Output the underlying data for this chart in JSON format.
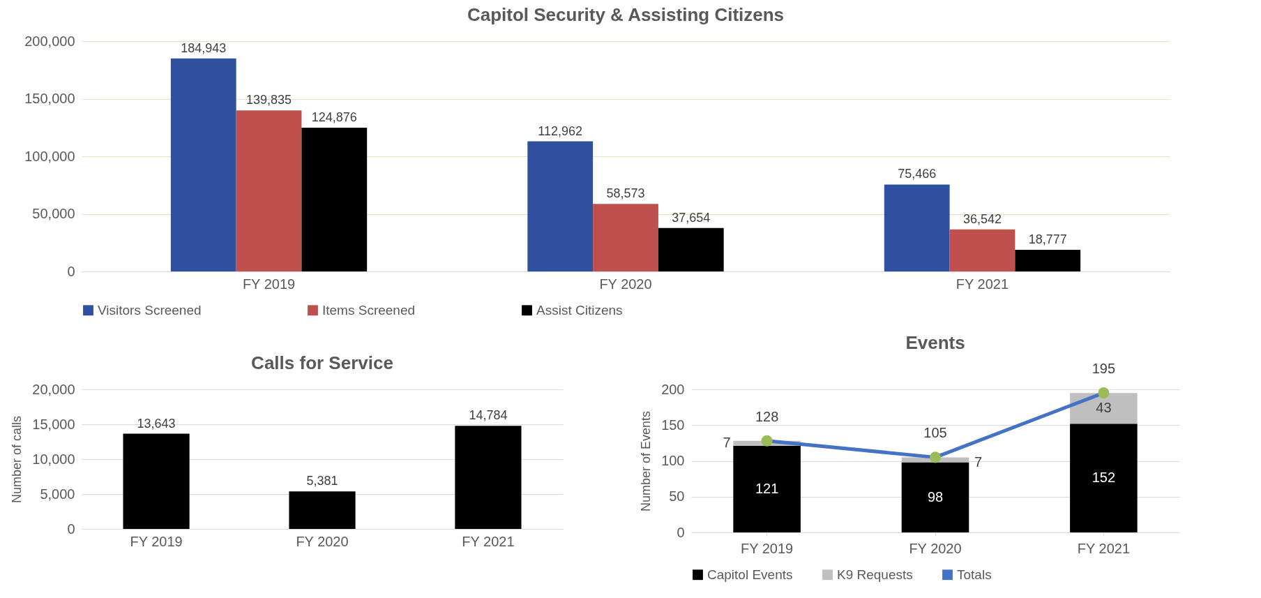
{
  "chart_data": [
    {
      "type": "bar",
      "title": "Capitol Security & Assisting Citizens",
      "categories": [
        "FY 2019",
        "FY 2020",
        "FY 2021"
      ],
      "series": [
        {
          "name": "Visitors Screened",
          "color": "#2f4f9f",
          "values": [
            184943,
            112962,
            75466
          ],
          "value_labels": [
            "184,943",
            "112,962",
            "75,466"
          ]
        },
        {
          "name": "Items Screened",
          "color": "#c0504d",
          "values": [
            139835,
            58573,
            36542
          ],
          "value_labels": [
            "139,835",
            "58,573",
            "36,542"
          ]
        },
        {
          "name": "Assist Citizens",
          "color": "#000000",
          "values": [
            124876,
            37654,
            18777
          ],
          "value_labels": [
            "124,876",
            "37,654",
            "18,777"
          ]
        }
      ],
      "ylim": [
        0,
        200000
      ],
      "yticks": [
        0,
        {
          "value": 50000,
          "label": "50,000"
        },
        {
          "value": 100000,
          "label": "100,000"
        },
        {
          "value": 150000,
          "label": "150,000"
        },
        {
          "value": 200000,
          "label": "200,000"
        }
      ],
      "grid": "y",
      "legend": "bottom"
    },
    {
      "type": "bar",
      "title": "Calls for Service",
      "ylabel": "Number of calls",
      "categories": [
        "FY 2019",
        "FY 2020",
        "FY 2021"
      ],
      "series": [
        {
          "color": "#000000",
          "values": [
            13643,
            5381,
            14784
          ],
          "value_labels": [
            "13,643",
            "5,381",
            "14,784"
          ]
        }
      ],
      "ylim": [
        0,
        20000
      ],
      "yticks": [
        0,
        {
          "value": 5000,
          "label": "5,000"
        },
        {
          "value": 10000,
          "label": "10,000"
        },
        {
          "value": 15000,
          "label": "15,000"
        },
        {
          "value": 20000,
          "label": "20,000"
        }
      ],
      "grid": "y"
    },
    {
      "type": "bar",
      "title": "Events",
      "ylabel": "Number of Events",
      "categories": [
        "FY 2019",
        "FY 2020",
        "FY 2021"
      ],
      "stacked": true,
      "series": [
        {
          "name": "Capitol Events",
          "color": "#000000",
          "values": [
            121,
            98,
            152
          ]
        },
        {
          "name": "K9 Requests",
          "color": "#bfbfbf",
          "values": [
            7,
            7,
            43
          ]
        },
        {
          "name": "Totals",
          "type": "line",
          "color": "#4472c4",
          "values": [
            128,
            105,
            195
          ]
        }
      ],
      "ylim": [
        0,
        200
      ],
      "yticks": [
        0,
        50,
        100,
        150,
        200
      ],
      "grid": "y",
      "legend": "bottom",
      "marker": "circle",
      "data_labels": true
    }
  ]
}
